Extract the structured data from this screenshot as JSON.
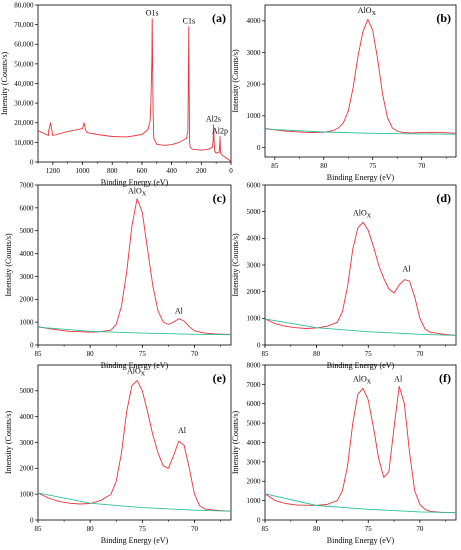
{
  "figure": {
    "background": "#ffffff"
  },
  "chart_data": [
    {
      "id": "a",
      "type": "line",
      "panel_label": "(a)",
      "xlabel": "Binding Energy (eV)",
      "ylabel": "Intensity (Counts/s)",
      "xlim": [
        1300,
        0
      ],
      "ylim": [
        0,
        80000
      ],
      "xticks": [
        1200,
        1000,
        800,
        600,
        400,
        200,
        0
      ],
      "yticks": [
        0,
        10000,
        20000,
        30000,
        40000,
        50000,
        60000,
        70000,
        80000
      ],
      "ytick_labels": [
        "0",
        "10,000",
        "20,000",
        "30,000",
        "40,000",
        "50,000",
        "60,000",
        "70,000",
        "80,000"
      ],
      "series": [
        {
          "color": "#e8343a",
          "x": [
            1300,
            1230,
            1228,
            1215,
            1200,
            1100,
            1000,
            990,
            980,
            970,
            900,
            800,
            700,
            600,
            560,
            545,
            540,
            533,
            531,
            528,
            525,
            520,
            500,
            450,
            400,
            350,
            300,
            290,
            287,
            284,
            282,
            279,
            275,
            260,
            200,
            150,
            125,
            120,
            118,
            116,
            114,
            110,
            100,
            80,
            76,
            74,
            72,
            70,
            60,
            40,
            20,
            10,
            0
          ],
          "y": [
            16000,
            13500,
            16000,
            20000,
            13500,
            15500,
            17000,
            20000,
            16500,
            15000,
            14000,
            13000,
            12800,
            14000,
            16500,
            21000,
            29000,
            52000,
            73000,
            50000,
            26000,
            12000,
            9000,
            8500,
            8800,
            10000,
            12000,
            16000,
            45000,
            69000,
            40000,
            10000,
            7500,
            6500,
            6000,
            6500,
            7500,
            11000,
            19000,
            17000,
            11000,
            5500,
            4500,
            5000,
            9000,
            13000,
            8000,
            4500,
            3500,
            2500,
            1500,
            800,
            300
          ]
        }
      ],
      "annotations": [
        {
          "text": "O1s",
          "x": 531,
          "y": 73000
        },
        {
          "text": "C1s",
          "x": 284,
          "y": 69000
        },
        {
          "text": "Al2s",
          "x": 118,
          "y": 19000
        },
        {
          "text": "Al2p",
          "x": 74,
          "y": 13000
        }
      ]
    },
    {
      "id": "b",
      "type": "line",
      "panel_label": "(b)",
      "xlabel": "Binding Energy (eV)",
      "ylabel": "Intensity (Counts/s)",
      "xlim": [
        86,
        66.5
      ],
      "ylim": [
        -300,
        4500
      ],
      "xticks": [
        85,
        80,
        75,
        70
      ],
      "yticks": [
        0,
        1000,
        2000,
        3000,
        4000
      ],
      "series": [
        {
          "color": "#e8343a",
          "x": [
            86,
            85,
            84,
            83,
            82,
            81,
            80,
            79,
            78.5,
            78,
            77.5,
            77,
            76.5,
            76,
            75.5,
            75,
            74.5,
            74,
            73.5,
            73,
            72.5,
            72,
            71,
            70,
            69,
            68,
            67,
            66.5
          ],
          "y": [
            600,
            560,
            520,
            500,
            480,
            470,
            480,
            540,
            620,
            780,
            1150,
            1900,
            2900,
            3650,
            4050,
            3700,
            2800,
            1700,
            950,
            620,
            520,
            480,
            460,
            470,
            480,
            470,
            460,
            450
          ]
        },
        {
          "color": "#2ec09a",
          "x": [
            86,
            80,
            75,
            70,
            66.5
          ],
          "y": [
            580,
            490,
            450,
            430,
            420
          ]
        }
      ],
      "annotations": [
        {
          "text": "AlOX",
          "x": 75.6,
          "y": 4150
        }
      ]
    },
    {
      "id": "c",
      "type": "line",
      "panel_label": "(c)",
      "xlabel": "Binding Energy (eV)",
      "ylabel": "Intensity (Counts/s)",
      "xlim": [
        85,
        66.5
      ],
      "ylim": [
        0,
        7000
      ],
      "xticks": [
        85,
        80,
        75,
        70
      ],
      "yticks": [
        0,
        1000,
        2000,
        3000,
        4000,
        5000,
        6000,
        7000
      ],
      "series": [
        {
          "color": "#e8343a",
          "x": [
            85,
            84,
            83,
            82,
            81,
            80,
            79,
            78,
            77.5,
            77,
            76.5,
            76,
            75.5,
            75,
            74.5,
            74,
            73.5,
            73,
            72.5,
            72,
            71.5,
            71,
            70.5,
            70,
            69,
            68,
            67,
            66.5
          ],
          "y": [
            800,
            720,
            650,
            600,
            580,
            560,
            580,
            650,
            900,
            1700,
            3200,
            5200,
            6400,
            5800,
            4200,
            2600,
            1500,
            1000,
            900,
            1000,
            1150,
            1050,
            800,
            620,
            520,
            480,
            470,
            460
          ]
        },
        {
          "color": "#2ec09a",
          "x": [
            85,
            80,
            75,
            70,
            66.5
          ],
          "y": [
            780,
            600,
            520,
            470,
            450
          ]
        }
      ],
      "annotations": [
        {
          "text": "AlOX",
          "x": 75.5,
          "y": 6500
        },
        {
          "text": "Al",
          "x": 71.5,
          "y": 1250
        }
      ]
    },
    {
      "id": "d",
      "type": "line",
      "panel_label": "(d)",
      "xlabel": "Binding Energy (eV)",
      "ylabel": "Intensity (Counts/s)",
      "xlim": [
        85,
        66.5
      ],
      "ylim": [
        0,
        6000
      ],
      "xticks": [
        85,
        80,
        75,
        70
      ],
      "yticks": [
        0,
        1000,
        2000,
        3000,
        4000,
        5000,
        6000
      ],
      "series": [
        {
          "color": "#e8343a",
          "x": [
            85,
            84,
            83,
            82,
            81,
            80,
            79,
            78,
            77.5,
            77,
            76.5,
            76,
            75.5,
            75,
            74.5,
            74,
            73.5,
            73,
            72.5,
            72,
            71.5,
            71,
            70.5,
            70,
            69.5,
            69,
            68,
            67,
            66.5
          ],
          "y": [
            980,
            800,
            700,
            650,
            620,
            640,
            700,
            850,
            1250,
            2200,
            3600,
            4400,
            4600,
            4300,
            3700,
            3000,
            2500,
            2100,
            1950,
            2250,
            2450,
            2400,
            1800,
            1000,
            600,
            480,
            420,
            380,
            360
          ]
        },
        {
          "color": "#2ec09a",
          "x": [
            85,
            80,
            75,
            70,
            66.5
          ],
          "y": [
            980,
            650,
            500,
            400,
            360
          ]
        }
      ],
      "annotations": [
        {
          "text": "AlOX",
          "x": 75.6,
          "y": 4750
        },
        {
          "text": "Al",
          "x": 71.3,
          "y": 2650
        }
      ]
    },
    {
      "id": "e",
      "type": "line",
      "panel_label": "(e)",
      "xlabel": "Binding Energy (eV)",
      "ylabel": "Intensity (Counts/s)",
      "xlim": [
        85,
        66.5
      ],
      "ylim": [
        0,
        6000
      ],
      "xticks": [
        85,
        80,
        75,
        70
      ],
      "yticks": [
        0,
        1000,
        2000,
        3000,
        4000,
        5000
      ],
      "series": [
        {
          "color": "#e8343a",
          "x": [
            85,
            84,
            83,
            82,
            81,
            80,
            79,
            78,
            77.5,
            77,
            76.5,
            76,
            75.5,
            75,
            74.5,
            74,
            73.5,
            73,
            72.5,
            72,
            71.5,
            71,
            70.5,
            70,
            69.5,
            69,
            68,
            67,
            66.5
          ],
          "y": [
            1050,
            850,
            720,
            650,
            620,
            640,
            750,
            1000,
            1500,
            2600,
            4200,
            5200,
            5400,
            5000,
            4200,
            3300,
            2600,
            2100,
            2000,
            2500,
            3050,
            2900,
            2000,
            1000,
            550,
            420,
            380,
            350,
            340
          ]
        },
        {
          "color": "#2ec09a",
          "x": [
            85,
            80,
            75,
            70,
            66.5
          ],
          "y": [
            1050,
            650,
            480,
            380,
            340
          ]
        }
      ],
      "annotations": [
        {
          "text": "AlOX",
          "x": 75.6,
          "y": 5550
        },
        {
          "text": "Al",
          "x": 71.2,
          "y": 3250
        }
      ]
    },
    {
      "id": "f",
      "type": "line",
      "panel_label": "(f)",
      "xlabel": "Binding Energy (eV)",
      "ylabel": "Intensity (Counts/s)",
      "xlim": [
        85,
        66.5
      ],
      "ylim": [
        0,
        8000
      ],
      "xticks": [
        85,
        80,
        75,
        70
      ],
      "yticks": [
        0,
        1000,
        2000,
        3000,
        4000,
        5000,
        6000,
        7000,
        8000
      ],
      "series": [
        {
          "color": "#e8343a",
          "x": [
            85,
            84,
            83,
            82,
            81,
            80,
            79,
            78,
            77.5,
            77,
            76.5,
            76,
            75.5,
            75,
            74.5,
            74,
            73.5,
            73,
            72.5,
            72,
            71.5,
            71,
            70.5,
            70,
            69.5,
            69,
            68,
            67,
            66.5
          ],
          "y": [
            1350,
            1000,
            850,
            780,
            760,
            760,
            800,
            1000,
            1500,
            2800,
            5000,
            6500,
            6800,
            6200,
            4800,
            3200,
            2200,
            2500,
            4800,
            6900,
            6000,
            3500,
            1500,
            800,
            550,
            450,
            400,
            380,
            370
          ]
        },
        {
          "color": "#2ec09a",
          "x": [
            85,
            80,
            75,
            70,
            66.5
          ],
          "y": [
            1350,
            750,
            550,
            420,
            380
          ]
        }
      ],
      "annotations": [
        {
          "text": "AlOX",
          "x": 75.6,
          "y": 7000
        },
        {
          "text": "Al",
          "x": 72.1,
          "y": 7000
        }
      ]
    }
  ]
}
